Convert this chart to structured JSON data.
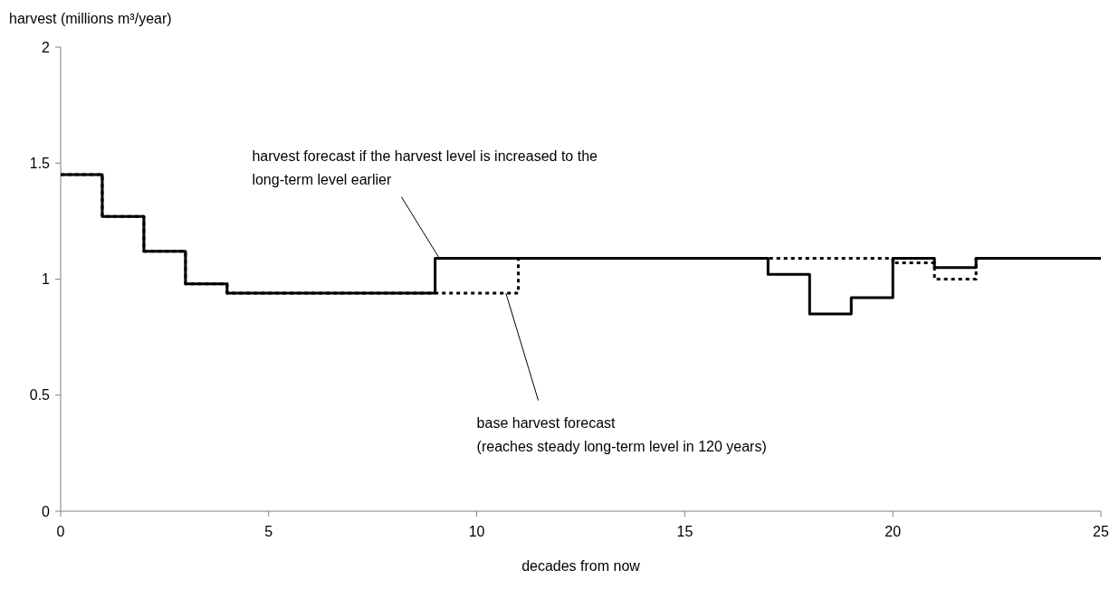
{
  "chart_data": {
    "type": "step",
    "xlabel": "decades from now",
    "ylabel": "harvest (millions m³/year)",
    "x": [
      0,
      1,
      2,
      3,
      4,
      5,
      6,
      7,
      8,
      9,
      10,
      11,
      12,
      13,
      14,
      15,
      16,
      17,
      18,
      19,
      20,
      21,
      22,
      23,
      24,
      25
    ],
    "series": [
      {
        "color": "#000000",
        "line_style": "solid",
        "values": [
          1.45,
          1.27,
          1.12,
          0.98,
          0.94,
          0.94,
          0.94,
          0.94,
          0.94,
          1.09,
          1.09,
          1.09,
          1.09,
          1.09,
          1.09,
          1.09,
          1.09,
          1.02,
          0.85,
          0.92,
          1.09,
          1.05,
          1.09,
          1.09,
          1.09,
          1.09
        ]
      },
      {
        "color": "#000000",
        "line_style": "dotted",
        "values": [
          1.45,
          1.27,
          1.12,
          0.98,
          0.94,
          0.94,
          0.94,
          0.94,
          0.94,
          0.94,
          0.94,
          1.09,
          1.09,
          1.09,
          1.09,
          1.09,
          1.09,
          1.09,
          1.09,
          1.09,
          1.07,
          1.0,
          1.09,
          1.09,
          1.09,
          1.09
        ]
      }
    ],
    "xlim": [
      0,
      25
    ],
    "xticks": [
      0,
      5,
      10,
      15,
      20,
      25
    ],
    "ylim": [
      0,
      2
    ],
    "yticks": [
      0,
      0.5,
      1,
      1.5,
      2
    ],
    "grid": false,
    "annotations": [
      {
        "text": "harvest forecast if the harvest level is increased to the\nlong-term level earlier",
        "x": 9.1,
        "y": 1.09
      },
      {
        "text": "base harvest forecast\n(reaches steady long-term level in 120 years)",
        "x": 10.7,
        "y": 0.94
      }
    ]
  }
}
